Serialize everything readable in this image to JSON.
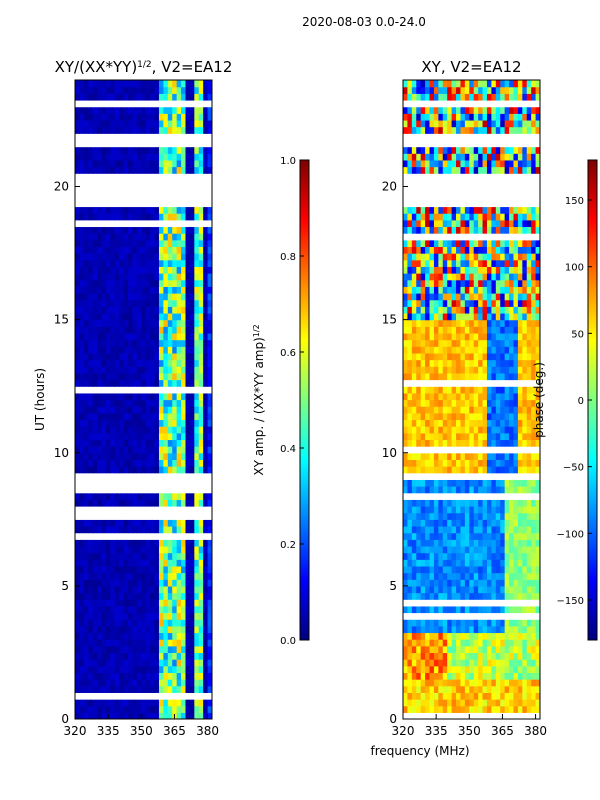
{
  "suptitle": "2020-08-03 0.0-24.0",
  "chart_data": [
    {
      "type": "heatmap",
      "title": "XY/(XX*YY)",
      "title_exponent": "1/2",
      "title_suffix": ", V2=EA12",
      "xlabel": "",
      "ylabel": "UT (hours)",
      "xlim": [
        320,
        382
      ],
      "ylim": [
        0,
        24
      ],
      "xticks": [
        320,
        335,
        350,
        365,
        380
      ],
      "yticks": [
        0,
        5,
        10,
        15,
        20
      ],
      "colorbar": {
        "label": "XY amp. / (XX*YY amp)",
        "label_exponent": "1/2",
        "range": [
          0.0,
          1.0
        ],
        "ticks": [
          0.0,
          0.2,
          0.4,
          0.6,
          0.8,
          1.0
        ],
        "tick_labels": [
          "0.0",
          "0.2",
          "0.4",
          "0.6",
          "0.8",
          "1.0"
        ],
        "colormap": "jet"
      },
      "gap_bands_hours": [
        [
          20.5,
          19.3
        ],
        [
          21.9,
          21.4
        ],
        [
          23.3,
          22.9
        ]
      ],
      "description": "Mostly low normalized amplitude (~0.0-0.1) at 320-358 MHz; elevated amplitude (~0.3-0.7) in vertical stripes near 360-370 MHz and 375-378 MHz"
    },
    {
      "type": "heatmap",
      "title": "XY, V2=EA12",
      "xlabel": "frequency (MHz)",
      "ylabel": "",
      "xlim": [
        320,
        382
      ],
      "ylim": [
        0,
        24
      ],
      "xticks": [
        320,
        335,
        350,
        365,
        380
      ],
      "yticks": [
        0,
        5,
        10,
        15,
        20
      ],
      "colorbar": {
        "label": "phase (deg.)",
        "range": [
          -180,
          180
        ],
        "ticks": [
          -150,
          -100,
          -50,
          0,
          50,
          100,
          150
        ],
        "tick_labels": [
          "−150",
          "−100",
          "−50",
          "0",
          "50",
          "100",
          "150"
        ],
        "colormap": "jet"
      },
      "gap_bands_hours": [
        [
          20.5,
          19.3
        ],
        [
          21.9,
          21.4
        ],
        [
          23.3,
          22.9
        ]
      ],
      "description": "Phase varies with time: near +50 deg (yellow/orange) from ~9-15 h and ~1-3 h, near -100 deg (blue) from ~4-9 h, mixed structure above 15 h"
    }
  ]
}
